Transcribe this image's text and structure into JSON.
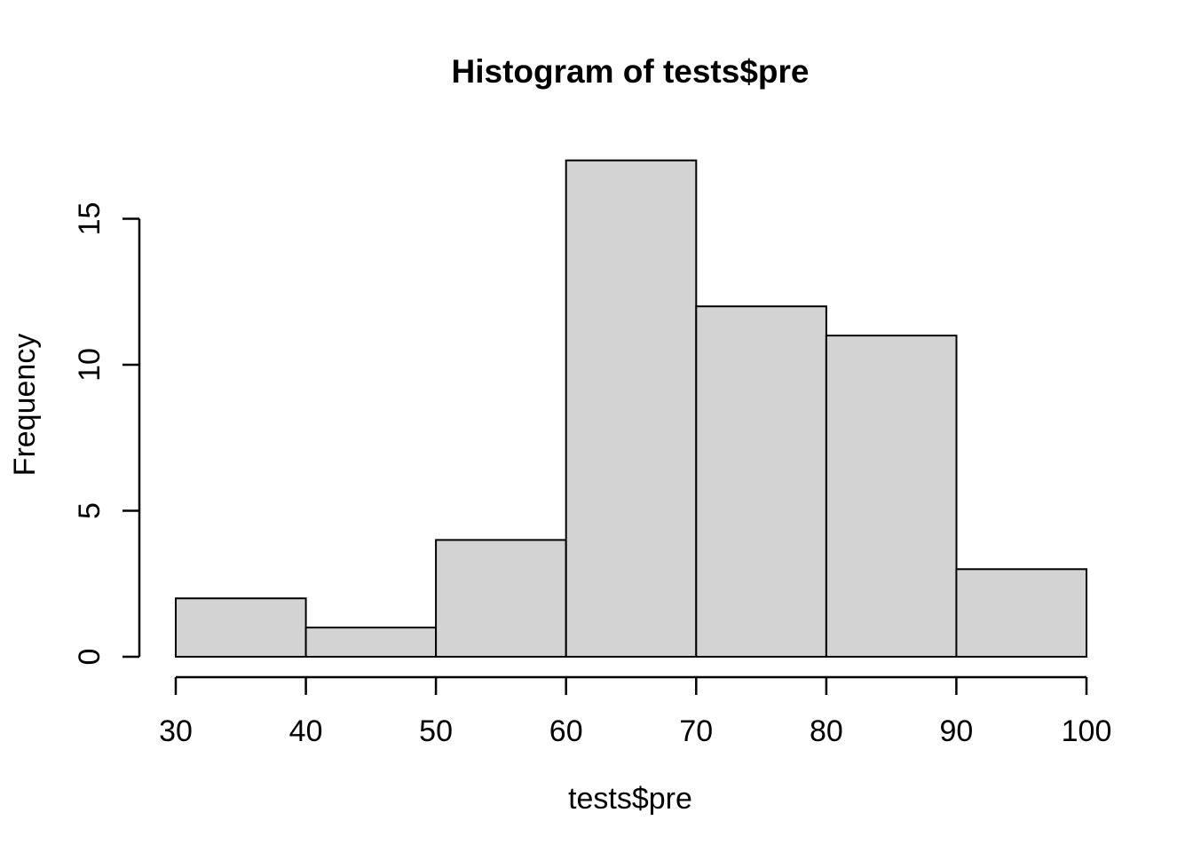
{
  "figure": {
    "background": "#FFFFFF"
  },
  "chart_data": {
    "type": "bar",
    "subtype": "histogram",
    "title": "Histogram of tests$pre",
    "xlabel": "tests$pre",
    "ylabel": "Frequency",
    "bin_edges": [
      30,
      40,
      50,
      60,
      70,
      80,
      90,
      100
    ],
    "values": [
      2,
      1,
      4,
      17,
      12,
      11,
      3
    ],
    "x_ticks": [
      30,
      40,
      50,
      60,
      70,
      80,
      90,
      100
    ],
    "y_ticks": [
      0,
      5,
      10,
      15
    ],
    "xlim": [
      30,
      100
    ],
    "ylim": [
      0,
      17
    ],
    "grid": false,
    "legend_position": null,
    "bar_fill": "#D3D3D3",
    "bar_border": "#000000",
    "axis_color": "#000000",
    "text_color": "#000000"
  }
}
